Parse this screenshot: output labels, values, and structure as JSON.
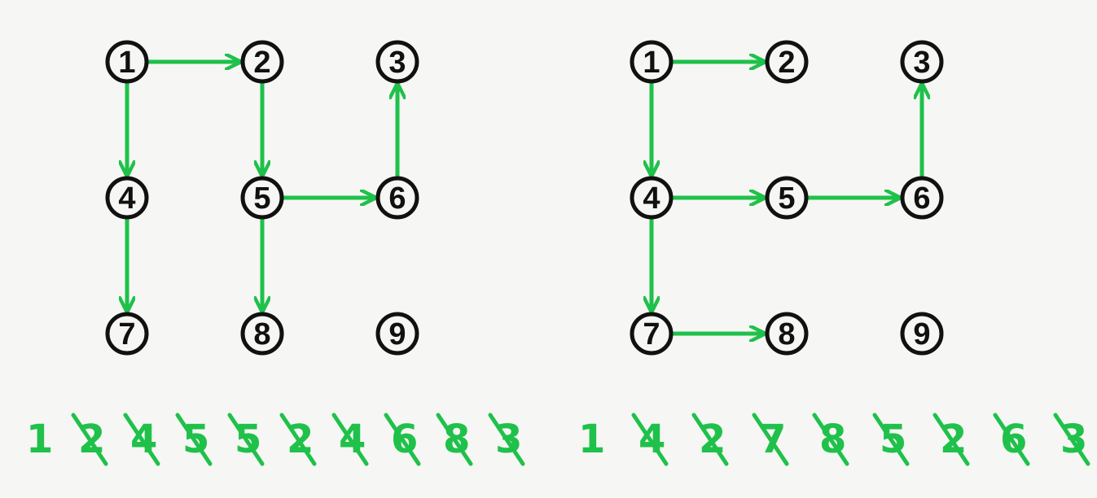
{
  "colors": {
    "background": "#f6f6f4",
    "node_stroke": "#111111",
    "edge": "#1fc14a"
  },
  "graphs": [
    {
      "name": "left",
      "nodes": [
        {
          "id": 1,
          "label": "1"
        },
        {
          "id": 2,
          "label": "2"
        },
        {
          "id": 3,
          "label": "3"
        },
        {
          "id": 4,
          "label": "4"
        },
        {
          "id": 5,
          "label": "5"
        },
        {
          "id": 6,
          "label": "6"
        },
        {
          "id": 7,
          "label": "7"
        },
        {
          "id": 8,
          "label": "8"
        },
        {
          "id": 9,
          "label": "9"
        }
      ],
      "edges": [
        {
          "from": 1,
          "to": 2
        },
        {
          "from": 1,
          "to": 4
        },
        {
          "from": 2,
          "to": 5
        },
        {
          "from": 4,
          "to": 7
        },
        {
          "from": 5,
          "to": 6
        },
        {
          "from": 5,
          "to": 8
        },
        {
          "from": 6,
          "to": 3
        }
      ],
      "tally": [
        "1",
        "2",
        "4",
        "5",
        "5",
        "2",
        "4",
        "6",
        "8",
        "3"
      ]
    },
    {
      "name": "right",
      "nodes": [
        {
          "id": 1,
          "label": "1"
        },
        {
          "id": 2,
          "label": "2"
        },
        {
          "id": 3,
          "label": "3"
        },
        {
          "id": 4,
          "label": "4"
        },
        {
          "id": 5,
          "label": "5"
        },
        {
          "id": 6,
          "label": "6"
        },
        {
          "id": 7,
          "label": "7"
        },
        {
          "id": 8,
          "label": "8"
        },
        {
          "id": 9,
          "label": "9"
        }
      ],
      "edges": [
        {
          "from": 1,
          "to": 2
        },
        {
          "from": 1,
          "to": 4
        },
        {
          "from": 4,
          "to": 5
        },
        {
          "from": 4,
          "to": 7
        },
        {
          "from": 5,
          "to": 6
        },
        {
          "from": 6,
          "to": 3
        },
        {
          "from": 7,
          "to": 8
        }
      ],
      "tally": [
        "1",
        "4",
        "2",
        "7",
        "8",
        "5",
        "2",
        "6",
        "3"
      ]
    }
  ]
}
